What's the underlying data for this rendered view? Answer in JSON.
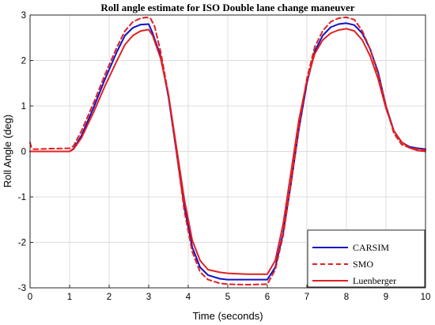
{
  "chart_data": {
    "type": "line",
    "title": "Roll angle estimate for ISO Double lane change maneuver",
    "xlabel": "Time (seconds)",
    "ylabel": "Roll Angle (deg)",
    "xlim": [
      0,
      10
    ],
    "ylim": [
      -3,
      3
    ],
    "xticks": [
      "0",
      "1",
      "2",
      "3",
      "4",
      "5",
      "6",
      "7",
      "8",
      "9",
      "10"
    ],
    "yticks": [
      "3",
      "2",
      "1",
      "0",
      "-1",
      "-2",
      "-3"
    ],
    "grid": true,
    "legend_position": "bottom-right",
    "series": [
      {
        "name": "CARSIM",
        "color": "#1010c8",
        "style": "solid",
        "x": [
          0,
          0.5,
          1.0,
          1.1,
          1.3,
          1.6,
          1.9,
          2.2,
          2.4,
          2.6,
          2.8,
          3.0,
          3.1,
          3.3,
          3.5,
          3.7,
          3.9,
          4.1,
          4.3,
          4.5,
          4.8,
          5.0,
          5.5,
          6.0,
          6.2,
          6.4,
          6.6,
          6.8,
          7.0,
          7.2,
          7.4,
          7.6,
          7.8,
          8.0,
          8.2,
          8.4,
          8.6,
          8.8,
          9.0,
          9.2,
          9.4,
          9.6,
          9.8,
          10.0
        ],
        "y": [
          0.0,
          0.0,
          0.0,
          0.06,
          0.35,
          0.95,
          1.6,
          2.2,
          2.55,
          2.72,
          2.79,
          2.8,
          2.6,
          2.1,
          1.2,
          0.0,
          -1.2,
          -2.1,
          -2.55,
          -2.72,
          -2.8,
          -2.82,
          -2.82,
          -2.82,
          -2.55,
          -1.8,
          -0.7,
          0.5,
          1.5,
          2.2,
          2.55,
          2.73,
          2.8,
          2.82,
          2.78,
          2.6,
          2.25,
          1.75,
          1.0,
          0.45,
          0.2,
          0.1,
          0.07,
          0.05
        ]
      },
      {
        "name": "SMO",
        "color": "#e02020",
        "style": "dashed",
        "x": [
          0,
          0.03,
          0.08,
          0.2,
          0.5,
          1.0,
          1.1,
          1.3,
          1.6,
          1.9,
          2.2,
          2.4,
          2.6,
          2.8,
          2.95,
          3.05,
          3.15,
          3.3,
          3.5,
          3.7,
          3.9,
          4.1,
          4.3,
          4.5,
          4.8,
          5.0,
          5.5,
          6.0,
          6.2,
          6.4,
          6.6,
          6.8,
          7.0,
          7.2,
          7.4,
          7.6,
          7.8,
          8.0,
          8.2,
          8.4,
          8.6,
          8.8,
          9.0,
          9.2,
          9.4,
          9.6,
          9.8,
          10.0
        ],
        "y": [
          0.2,
          0.1,
          0.05,
          0.05,
          0.06,
          0.07,
          0.12,
          0.45,
          1.05,
          1.7,
          2.3,
          2.65,
          2.85,
          2.93,
          2.95,
          2.92,
          2.75,
          2.2,
          1.25,
          0.0,
          -1.3,
          -2.2,
          -2.65,
          -2.82,
          -2.9,
          -2.92,
          -2.93,
          -2.92,
          -2.6,
          -1.85,
          -0.7,
          0.55,
          1.6,
          2.3,
          2.65,
          2.85,
          2.93,
          2.95,
          2.9,
          2.65,
          2.25,
          1.7,
          1.0,
          0.4,
          0.15,
          0.08,
          0.05,
          0.03
        ]
      },
      {
        "name": "Luenberger",
        "color": "#e02020",
        "style": "solid",
        "x": [
          0,
          0.5,
          1.0,
          1.1,
          1.3,
          1.6,
          1.9,
          2.2,
          2.4,
          2.6,
          2.8,
          3.0,
          3.1,
          3.3,
          3.5,
          3.7,
          3.9,
          4.1,
          4.3,
          4.5,
          4.8,
          5.0,
          5.5,
          6.0,
          6.2,
          6.4,
          6.6,
          6.8,
          7.0,
          7.2,
          7.4,
          7.6,
          7.8,
          8.0,
          8.2,
          8.4,
          8.6,
          8.8,
          9.0,
          9.2,
          9.4,
          9.6,
          9.8,
          10.0
        ],
        "y": [
          0.0,
          0.0,
          0.0,
          0.05,
          0.3,
          0.85,
          1.45,
          2.0,
          2.35,
          2.55,
          2.65,
          2.68,
          2.55,
          2.05,
          1.25,
          0.1,
          -1.05,
          -1.95,
          -2.4,
          -2.6,
          -2.66,
          -2.68,
          -2.7,
          -2.7,
          -2.4,
          -1.6,
          -0.45,
          0.7,
          1.55,
          2.15,
          2.45,
          2.6,
          2.67,
          2.7,
          2.65,
          2.45,
          2.1,
          1.6,
          0.95,
          0.45,
          0.2,
          0.08,
          0.02,
          0.0
        ]
      }
    ]
  }
}
